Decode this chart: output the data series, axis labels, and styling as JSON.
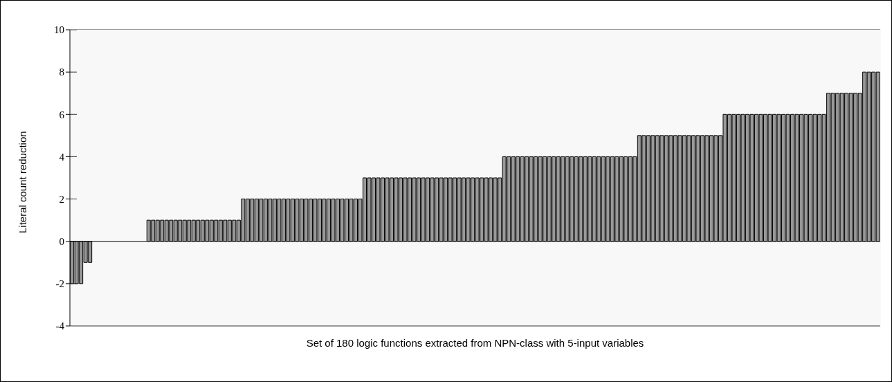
{
  "chart_data": {
    "type": "bar",
    "xlabel": "Set of 180 logic functions extracted from NPN-class with 5-input variables",
    "ylabel": "Literal count reduction",
    "categories": [
      null,
      null,
      null,
      null,
      null,
      null,
      null,
      null,
      null,
      null,
      null,
      null,
      null,
      null,
      null,
      null,
      null,
      null,
      null,
      null,
      null,
      null,
      null,
      null,
      null,
      null,
      null,
      null,
      null,
      null,
      null,
      null,
      null,
      null,
      null,
      null,
      null,
      null,
      null,
      null,
      null,
      null,
      null,
      null,
      null,
      null,
      null,
      null,
      null,
      null,
      null,
      null,
      null,
      null,
      null,
      null,
      null,
      null,
      null,
      null,
      null,
      null,
      null,
      null,
      null,
      null,
      null,
      null,
      null,
      null,
      null,
      null,
      null,
      null,
      null,
      null,
      null,
      null,
      null,
      null,
      null,
      null,
      null,
      null,
      null,
      null,
      null,
      null,
      null,
      null,
      null,
      null,
      null,
      null,
      null,
      null,
      null,
      null,
      null,
      null,
      null,
      null,
      null,
      null,
      null,
      null,
      null,
      null,
      null,
      null,
      null,
      null,
      null,
      null,
      null,
      null,
      null,
      null,
      null,
      null,
      null,
      null,
      null,
      null,
      null,
      null,
      null,
      null,
      null,
      null,
      null,
      null,
      null,
      null,
      null,
      null,
      null,
      null,
      null,
      null,
      null,
      null,
      null,
      null,
      null,
      null,
      null,
      null,
      null,
      null,
      null,
      null,
      null,
      null,
      null,
      null,
      null,
      null,
      null,
      null,
      null,
      null,
      null,
      null,
      null,
      null,
      null,
      null,
      null,
      null,
      null,
      null,
      null,
      null,
      null,
      null,
      null,
      null,
      null,
      null
    ],
    "values": [
      -2,
      -2,
      -2,
      -1,
      -1,
      0,
      0,
      0,
      0,
      0,
      0,
      0,
      0,
      0,
      0,
      0,
      0,
      1,
      1,
      1,
      1,
      1,
      1,
      1,
      1,
      1,
      1,
      1,
      1,
      1,
      1,
      1,
      1,
      1,
      1,
      1,
      1,
      1,
      2,
      2,
      2,
      2,
      2,
      2,
      2,
      2,
      2,
      2,
      2,
      2,
      2,
      2,
      2,
      2,
      2,
      2,
      2,
      2,
      2,
      2,
      2,
      2,
      2,
      2,
      2,
      3,
      3,
      3,
      3,
      3,
      3,
      3,
      3,
      3,
      3,
      3,
      3,
      3,
      3,
      3,
      3,
      3,
      3,
      3,
      3,
      3,
      3,
      3,
      3,
      3,
      3,
      3,
      3,
      3,
      3,
      3,
      4,
      4,
      4,
      4,
      4,
      4,
      4,
      4,
      4,
      4,
      4,
      4,
      4,
      4,
      4,
      4,
      4,
      4,
      4,
      4,
      4,
      4,
      4,
      4,
      4,
      4,
      4,
      4,
      4,
      4,
      5,
      5,
      5,
      5,
      5,
      5,
      5,
      5,
      5,
      5,
      5,
      5,
      5,
      5,
      5,
      5,
      5,
      5,
      5,
      6,
      6,
      6,
      6,
      6,
      6,
      6,
      6,
      6,
      6,
      6,
      6,
      6,
      6,
      6,
      6,
      6,
      6,
      6,
      6,
      6,
      6,
      6,
      7,
      7,
      7,
      7,
      7,
      7,
      7,
      7,
      8,
      8,
      8,
      8
    ],
    "color": "#999999",
    "ylim": [
      -4,
      10
    ],
    "yticks": [
      -4,
      -2,
      0,
      2,
      4,
      6,
      8,
      10
    ],
    "grid": "y",
    "tick_labels": "y"
  }
}
